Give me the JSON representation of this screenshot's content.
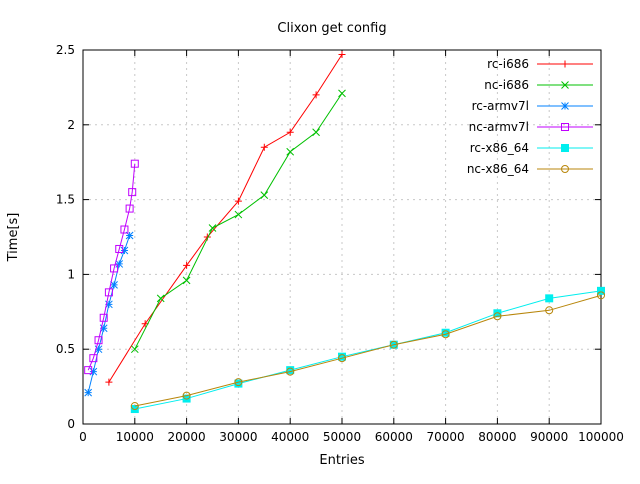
{
  "chart_data": {
    "type": "line",
    "title": "Clixon get config",
    "xlabel": "Entries",
    "ylabel": "Time[s]",
    "xlim": [
      0,
      100000
    ],
    "ylim": [
      0,
      2.5
    ],
    "grid": true,
    "legend_position": "top-right",
    "xticks": [
      {
        "v": 0,
        "label": "0"
      },
      {
        "v": 10000,
        "label": "10000"
      },
      {
        "v": 20000,
        "label": "20000"
      },
      {
        "v": 30000,
        "label": "30000"
      },
      {
        "v": 40000,
        "label": "40000"
      },
      {
        "v": 50000,
        "label": "50000"
      },
      {
        "v": 60000,
        "label": "60000"
      },
      {
        "v": 70000,
        "label": "70000"
      },
      {
        "v": 80000,
        "label": "80000"
      },
      {
        "v": 90000,
        "label": "90000"
      },
      {
        "v": 100000,
        "label": "100000"
      }
    ],
    "yticks": [
      {
        "v": 0,
        "label": "0"
      },
      {
        "v": 0.5,
        "label": "0.5"
      },
      {
        "v": 1,
        "label": "1"
      },
      {
        "v": 1.5,
        "label": "1.5"
      },
      {
        "v": 2,
        "label": "2"
      },
      {
        "v": 2.5,
        "label": "2.5"
      }
    ],
    "series": [
      {
        "name": "rc-i686",
        "color": "#ff0000",
        "marker": "plus",
        "points": [
          [
            5000,
            0.28
          ],
          [
            12000,
            0.67
          ],
          [
            20000,
            1.06
          ],
          [
            24000,
            1.25
          ],
          [
            30000,
            1.49
          ],
          [
            35000,
            1.85
          ],
          [
            40000,
            1.95
          ],
          [
            45000,
            2.2
          ],
          [
            50000,
            2.47
          ]
        ]
      },
      {
        "name": "nc-i686",
        "color": "#00c000",
        "marker": "cross",
        "points": [
          [
            10000,
            0.5
          ],
          [
            15000,
            0.84
          ],
          [
            20000,
            0.96
          ],
          [
            25000,
            1.31
          ],
          [
            30000,
            1.4
          ],
          [
            35000,
            1.53
          ],
          [
            40000,
            1.82
          ],
          [
            45000,
            1.95
          ],
          [
            50000,
            2.21
          ]
        ]
      },
      {
        "name": "rc-armv7l",
        "color": "#0080ff",
        "marker": "asterisk",
        "points": [
          [
            1000,
            0.21
          ],
          [
            2000,
            0.35
          ],
          [
            3000,
            0.5
          ],
          [
            4000,
            0.64
          ],
          [
            5000,
            0.8
          ],
          [
            6000,
            0.93
          ],
          [
            7000,
            1.07
          ],
          [
            8000,
            1.16
          ],
          [
            9000,
            1.26
          ]
        ]
      },
      {
        "name": "nc-armv7l",
        "color": "#c000ff",
        "marker": "square-open",
        "points": [
          [
            1000,
            0.36
          ],
          [
            2000,
            0.44
          ],
          [
            3000,
            0.56
          ],
          [
            4000,
            0.71
          ],
          [
            5000,
            0.88
          ],
          [
            6000,
            1.04
          ],
          [
            7000,
            1.17
          ],
          [
            8000,
            1.3
          ],
          [
            9000,
            1.44
          ],
          [
            9500,
            1.55
          ],
          [
            10000,
            1.74
          ]
        ]
      },
      {
        "name": "rc-x86_64",
        "color": "#00eeee",
        "marker": "square-filled",
        "points": [
          [
            10000,
            0.1
          ],
          [
            20000,
            0.17
          ],
          [
            30000,
            0.27
          ],
          [
            40000,
            0.36
          ],
          [
            50000,
            0.45
          ],
          [
            60000,
            0.53
          ],
          [
            70000,
            0.61
          ],
          [
            80000,
            0.74
          ],
          [
            90000,
            0.84
          ],
          [
            100000,
            0.89
          ]
        ]
      },
      {
        "name": "nc-x86_64",
        "color": "#b8860b",
        "marker": "circle-open",
        "points": [
          [
            10000,
            0.12
          ],
          [
            20000,
            0.19
          ],
          [
            30000,
            0.28
          ],
          [
            40000,
            0.35
          ],
          [
            50000,
            0.44
          ],
          [
            60000,
            0.53
          ],
          [
            70000,
            0.6
          ],
          [
            80000,
            0.72
          ],
          [
            90000,
            0.76
          ],
          [
            100000,
            0.86
          ]
        ]
      }
    ]
  }
}
